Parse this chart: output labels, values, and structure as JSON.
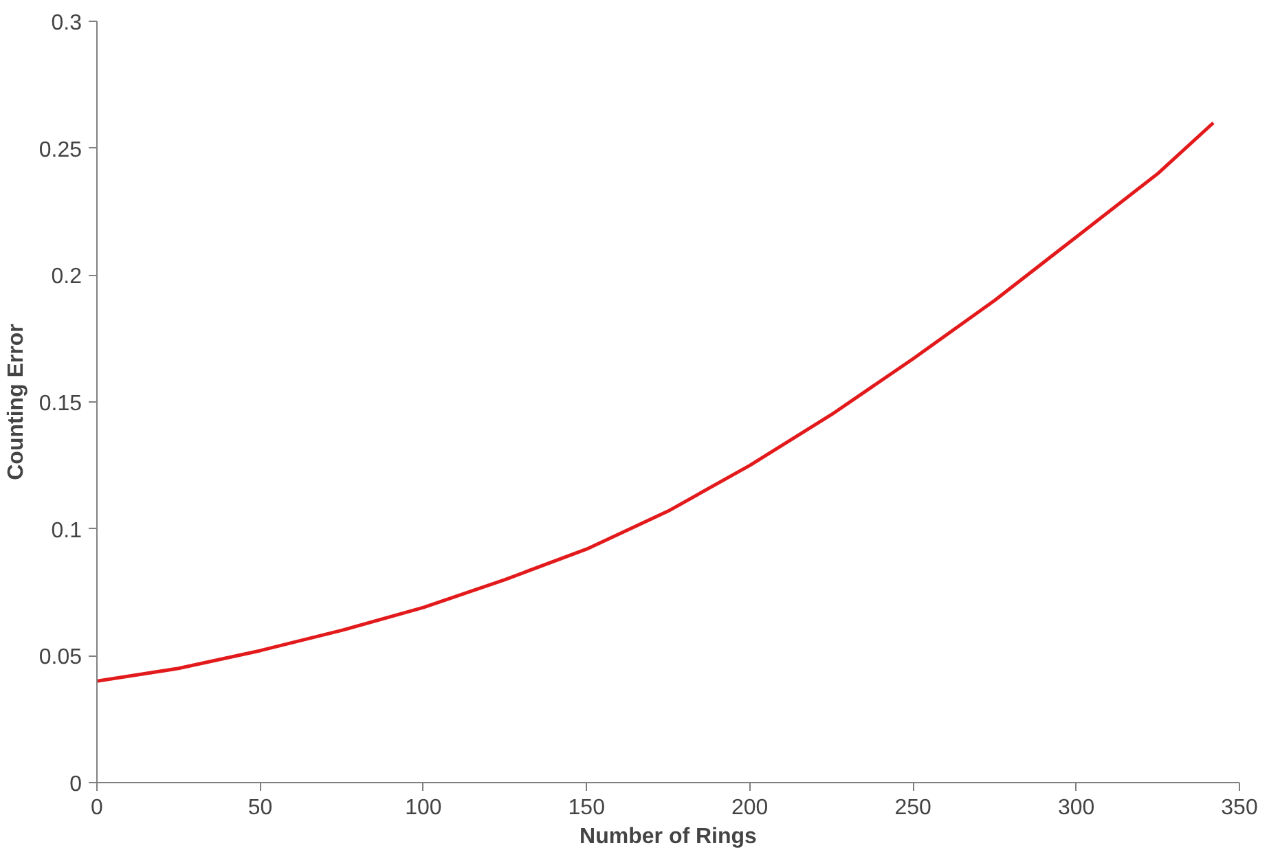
{
  "chart_data": {
    "type": "line",
    "xlabel": "Number of Rings",
    "ylabel": "Counting Error",
    "x": [
      0,
      25,
      50,
      75,
      100,
      125,
      150,
      175,
      200,
      225,
      250,
      275,
      300,
      325,
      342
    ],
    "series": [
      {
        "color": "#e31a1c",
        "values": [
          0.04,
          0.045,
          0.052,
          0.06,
          0.069,
          0.08,
          0.092,
          0.107,
          0.125,
          0.145,
          0.167,
          0.19,
          0.215,
          0.24,
          0.26
        ]
      }
    ],
    "xlim": [
      0,
      350
    ],
    "xticks": [
      0,
      50,
      100,
      150,
      200,
      250,
      300,
      350
    ],
    "ylim": [
      0,
      0.3
    ],
    "yticks": [
      0,
      {
        "value": 0.05,
        "label": "0.05"
      },
      {
        "value": 0.1,
        "label": "0.1"
      },
      {
        "value": 0.15,
        "label": "0.15"
      },
      {
        "value": 0.2,
        "label": "0.2"
      },
      {
        "value": 0.25,
        "label": "0.25"
      },
      {
        "value": 0.3,
        "label": "0.3"
      }
    ],
    "grid": false,
    "line_style": "solid"
  }
}
